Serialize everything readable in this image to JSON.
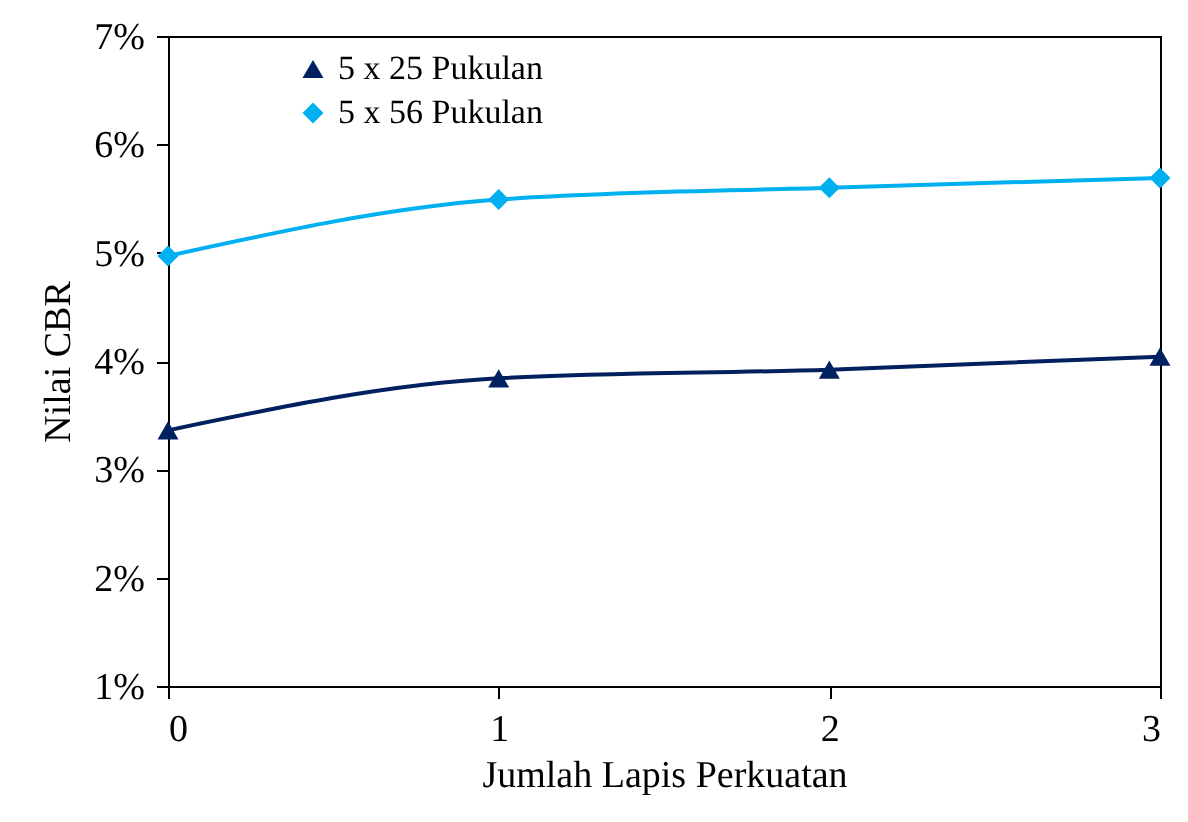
{
  "chart_data": {
    "type": "line",
    "xlabel": "Jumlah Lapis Perkuatan",
    "ylabel": "Nilai CBR",
    "x": [
      0,
      1,
      2,
      3
    ],
    "series": [
      {
        "name": "5 x 25 Pukulan",
        "color": "#002060",
        "marker": "triangle",
        "values": [
          3.36,
          3.84,
          3.92,
          4.04
        ]
      },
      {
        "name": "5 x 56 Pukulan",
        "color": "#00b0f0",
        "marker": "diamond",
        "values": [
          4.97,
          5.49,
          5.6,
          5.69
        ]
      }
    ],
    "xlim": [
      0,
      3
    ],
    "xticks": [
      0,
      1,
      2,
      3
    ],
    "ylim": [
      1,
      7
    ],
    "yticks": [
      {
        "value": 1,
        "label": "1%"
      },
      {
        "value": 2,
        "label": "2%"
      },
      {
        "value": 3,
        "label": "3%"
      },
      {
        "value": 4,
        "label": "4%"
      },
      {
        "value": 5,
        "label": "5%"
      },
      {
        "value": 6,
        "label": "6%"
      },
      {
        "value": 7,
        "label": "7%"
      }
    ],
    "grid": false,
    "legend": "top left",
    "line_style": "solid"
  }
}
